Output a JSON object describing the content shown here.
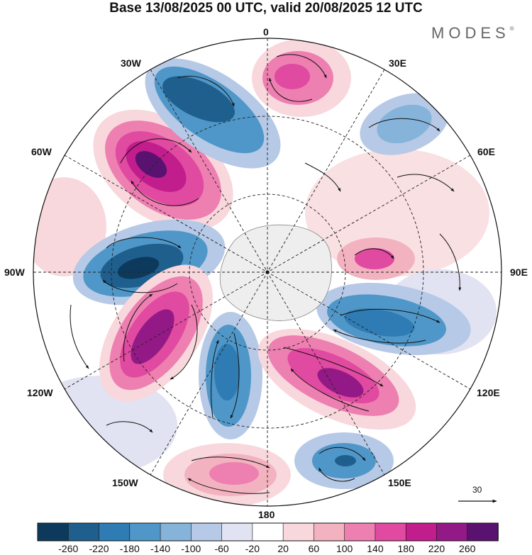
{
  "title": "Base 13/08/2025 00 UTC, valid 20/08/2025 12 UTC",
  "brand": "MODES",
  "brand_mark": "®",
  "longitude_labels": {
    "lon_0": "0",
    "lon_30e": "30E",
    "lon_60e": "60E",
    "lon_90e": "90E",
    "lon_120e": "120E",
    "lon_150e": "150E",
    "lon_180": "180",
    "lon_150w": "150W",
    "lon_120w": "120W",
    "lon_90w": "90W",
    "lon_60w": "60W",
    "lon_30w": "30W"
  },
  "reference_vector": "30",
  "colorbar": {
    "ticks": [
      "-260",
      "-220",
      "-180",
      "-140",
      "-100",
      "-60",
      "-20",
      "20",
      "60",
      "100",
      "140",
      "180",
      "220",
      "260"
    ],
    "colors": [
      "#0d3a5c",
      "#1f5f8d",
      "#2f7bb4",
      "#4f97c8",
      "#86b3d9",
      "#b6c9e6",
      "#e1e3f2",
      "#ffffff",
      "#f8d8dc",
      "#f3b2c0",
      "#ee7fb1",
      "#e04aa0",
      "#c21d8c",
      "#931a86",
      "#5a1270"
    ]
  },
  "anomalies": [
    {
      "id": "pos-60w",
      "value": 260,
      "label": "positive anomaly 60W"
    },
    {
      "id": "neg-90w",
      "value": -260,
      "label": "negative anomaly 90W"
    },
    {
      "id": "pos-120w",
      "value": 240,
      "label": "positive anomaly 120W"
    },
    {
      "id": "neg-150w",
      "value": -180,
      "label": "negative anomaly 150W"
    },
    {
      "id": "pos-180",
      "value": 140,
      "label": "positive anomaly 180"
    },
    {
      "id": "neg-160e",
      "value": -180,
      "label": "negative anomaly 160E"
    },
    {
      "id": "pos-135e",
      "value": 220,
      "label": "positive anomaly 135E"
    },
    {
      "id": "neg-105e",
      "value": -200,
      "label": "negative anomaly 105E"
    },
    {
      "id": "pos-80e",
      "value": 160,
      "label": "positive anomaly 80E"
    },
    {
      "id": "neg-45e",
      "value": -100,
      "label": "negative anomaly 45E"
    },
    {
      "id": "pos-10e",
      "value": 160,
      "label": "positive anomaly 10E"
    },
    {
      "id": "neg-30w",
      "value": -200,
      "label": "negative anomaly 30W"
    }
  ]
}
